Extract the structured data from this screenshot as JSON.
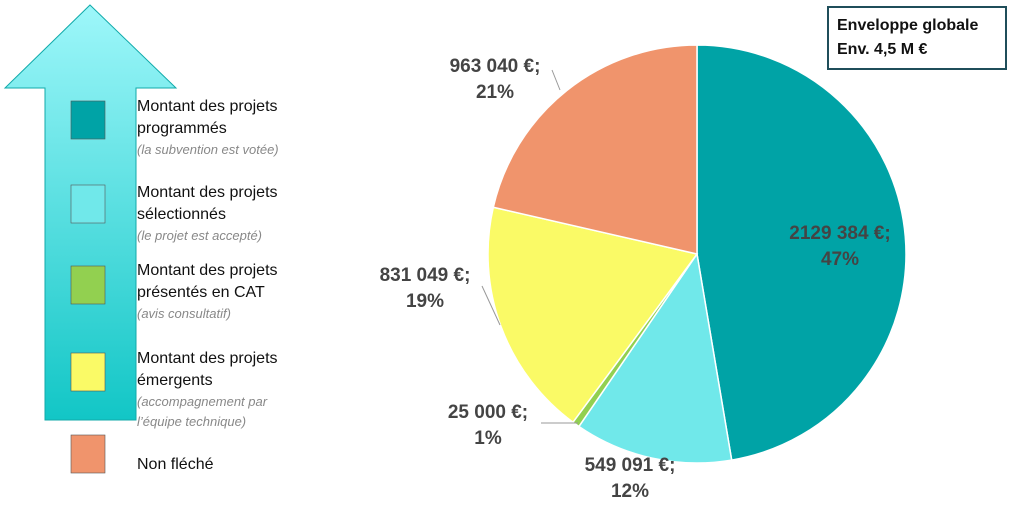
{
  "chart_data": {
    "type": "pie",
    "categories": [
      "Montant des projets programmés",
      "Montant des projets sélectionnés",
      "Montant des projets présentés en CAT",
      "Montant des projets émergents",
      "Non fléché"
    ],
    "legend_notes": [
      "(la subvention est votée)",
      "(le projet est accepté)",
      "(avis consultatif)",
      "(accompagnement par l’équipe technique)"
    ],
    "values": [
      2129384,
      549091,
      25000,
      831049,
      963040
    ],
    "value_labels": [
      [
        "2129 384 €;",
        "47%"
      ],
      [
        "549 091 €;",
        "12%"
      ],
      [
        "25 000 €;",
        "1%"
      ],
      [
        "831 049 €;",
        "19%"
      ],
      [
        "963 040 €;",
        "21%"
      ]
    ],
    "colors": [
      "#00a3a6",
      "#70e8ea",
      "#92d050",
      "#fafa66",
      "#f0946c"
    ],
    "annotation": [
      "Enveloppe globale",
      "Env. 4,5 M €"
    ]
  }
}
